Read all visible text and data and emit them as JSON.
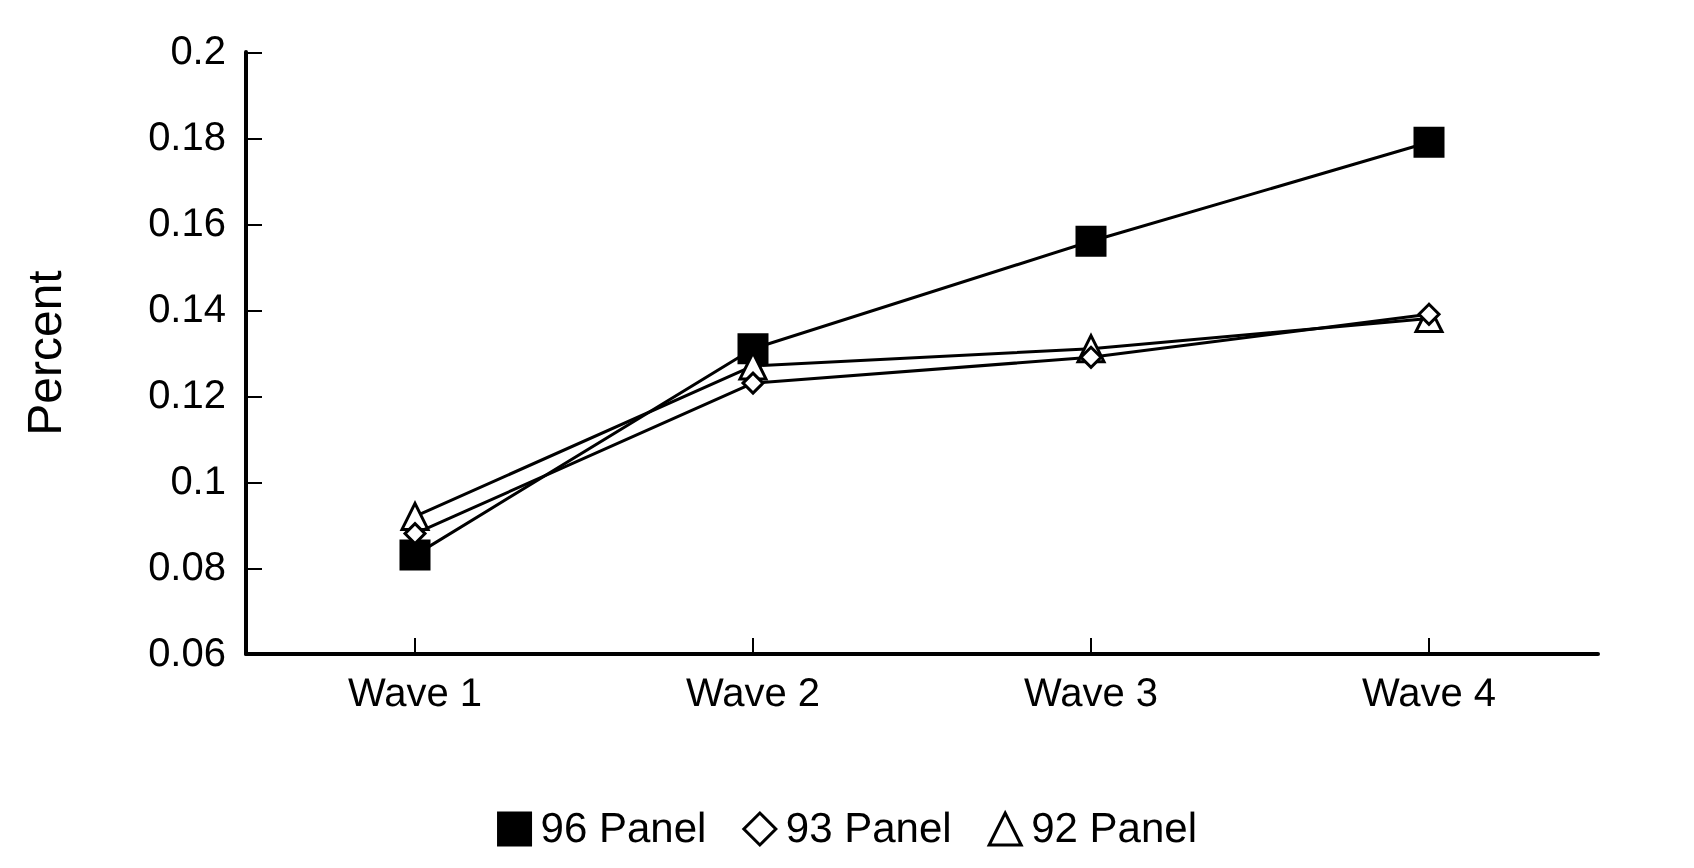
{
  "chart_data": {
    "type": "line",
    "ylabel": "Percent",
    "categories": [
      "Wave 1",
      "Wave 2",
      "Wave 3",
      "Wave 4"
    ],
    "series": [
      {
        "name": "96 Panel",
        "color": "#000000",
        "marker": "square",
        "values": [
          0.083,
          0.131,
          0.156,
          0.179
        ]
      },
      {
        "name": "93 Panel",
        "color": "#000000",
        "marker": "diamond",
        "values": [
          0.088,
          0.123,
          0.129,
          0.139
        ]
      },
      {
        "name": "92 Panel",
        "color": "#000000",
        "marker": "triangle",
        "values": [
          0.092,
          0.127,
          0.131,
          0.138
        ]
      }
    ],
    "ylim": [
      0.06,
      0.2
    ],
    "yticks": [
      0.06,
      0.08,
      0.1,
      0.12,
      0.14,
      0.16,
      0.18,
      0.2
    ],
    "grid": false,
    "legend": "bottom",
    "line_style": "solid"
  }
}
